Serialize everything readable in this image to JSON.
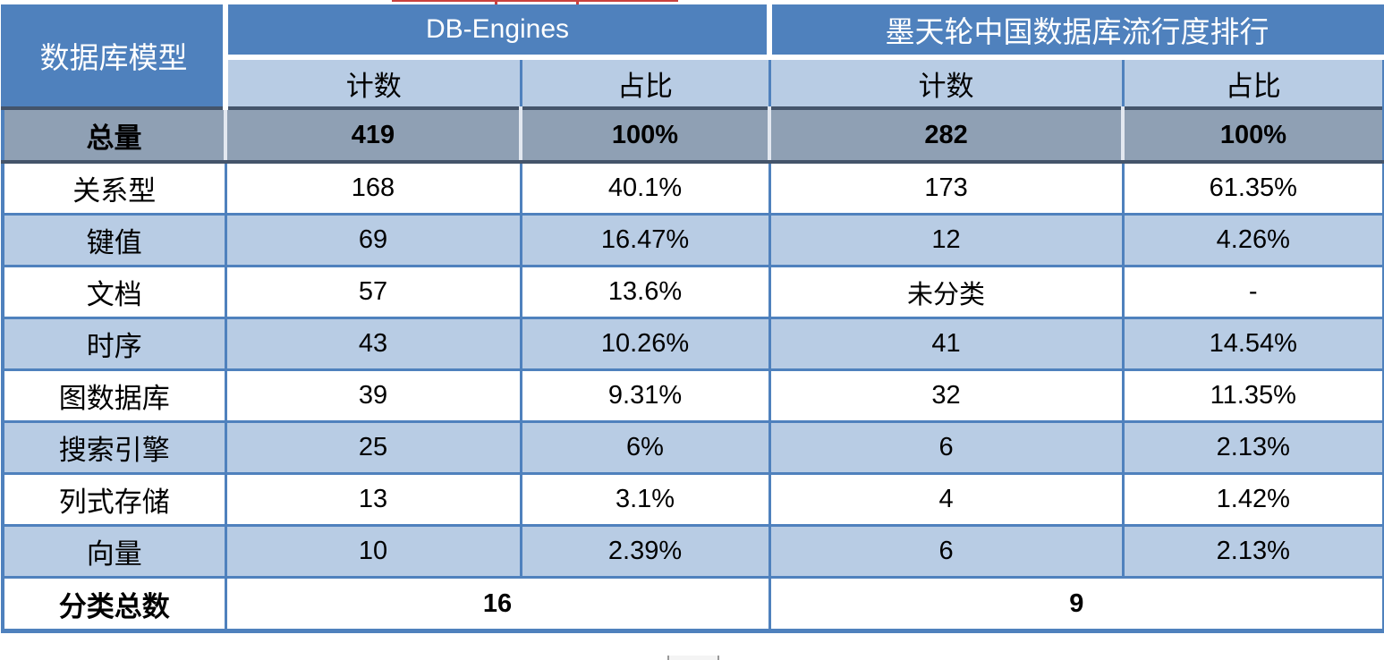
{
  "chart_data": {
    "type": "table",
    "corner_header": "数据库模型",
    "column_groups": [
      "DB-Engines",
      "墨天轮中国数据库流行度排行"
    ],
    "subheaders": [
      "计数",
      "占比",
      "计数",
      "占比"
    ],
    "total_row": {
      "label": "总量",
      "cells": [
        "419",
        "100%",
        "282",
        "100%"
      ]
    },
    "rows": [
      {
        "label": "关系型",
        "cells": [
          "168",
          "40.1%",
          "173",
          "61.35%"
        ]
      },
      {
        "label": "键值",
        "cells": [
          "69",
          "16.47%",
          "12",
          "4.26%"
        ]
      },
      {
        "label": "文档",
        "cells": [
          "57",
          "13.6%",
          "未分类",
          "-"
        ]
      },
      {
        "label": "时序",
        "cells": [
          "43",
          "10.26%",
          "41",
          "14.54%"
        ]
      },
      {
        "label": "图数据库",
        "cells": [
          "39",
          "9.31%",
          "32",
          "11.35%"
        ]
      },
      {
        "label": "搜索引擎",
        "cells": [
          "25",
          "6%",
          "6",
          "2.13%"
        ]
      },
      {
        "label": "列式存储",
        "cells": [
          "13",
          "3.1%",
          "4",
          "1.42%"
        ]
      },
      {
        "label": "向量",
        "cells": [
          "10",
          "2.39%",
          "6",
          "2.13%"
        ]
      }
    ],
    "footer_row": {
      "label": "分类总数",
      "values": [
        "16",
        "9"
      ]
    }
  },
  "colors": {
    "header_blue": "#4F81BD",
    "light_blue": "#B8CCE4",
    "total_row_gray": "#8FA0B4",
    "border_blue": "#4F81BD",
    "dark_border": "#44546A",
    "artifact_red": "#C9413E"
  }
}
